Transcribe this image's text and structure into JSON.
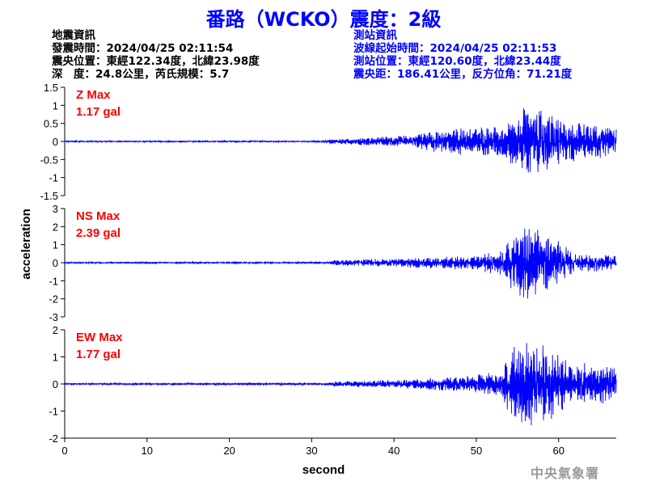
{
  "header": {
    "title": "番路（WCKO）震度：2級"
  },
  "quake_info": {
    "heading": "地震資訊",
    "time": "發震時間：2024/04/25 02:11:54",
    "location": "震央位置：東經122.34度，北緯23.98度",
    "depth_mag": "深　度：24.8公里，芮氏規模：5.7"
  },
  "station_info": {
    "heading": "測站資訊",
    "wave_start": "波線起始時間：2024/04/25 02:11:53",
    "location": "測站位置：東經120.60度，北緯23.44度",
    "distance": "震央距：186.41公里，反方位角：71.21度"
  },
  "watermark": "中央氣象署",
  "colors": {
    "title": "#0000ff",
    "station_text": "#0000ff",
    "trace": "#0000ff",
    "max_label": "#ff0000",
    "axis": "#000000"
  },
  "chart_data": {
    "type": "line",
    "xlabel": "second",
    "ylabel": "acceleration",
    "xlim": [
      0,
      67
    ],
    "x_ticks": [
      "0",
      "10",
      "20",
      "30",
      "40",
      "50",
      "60"
    ],
    "panels": [
      {
        "name": "Z",
        "max_label": "Z Max",
        "max_value": "1.17 gal",
        "ylim": [
          -1.5,
          1.5
        ],
        "y_ticks": [
          "1.5",
          "1",
          "0.5",
          "0",
          "-0.5",
          "-1",
          "-1.5"
        ],
        "envelope": [
          {
            "t": 0,
            "amp": 0.02
          },
          {
            "t": 31,
            "amp": 0.02
          },
          {
            "t": 32,
            "amp": 0.06
          },
          {
            "t": 38,
            "amp": 0.12
          },
          {
            "t": 42,
            "amp": 0.18
          },
          {
            "t": 46,
            "amp": 0.35
          },
          {
            "t": 50,
            "amp": 0.4
          },
          {
            "t": 53,
            "amp": 0.45
          },
          {
            "t": 55,
            "amp": 0.9
          },
          {
            "t": 56,
            "amp": 1.17
          },
          {
            "t": 58,
            "amp": 0.9
          },
          {
            "t": 61,
            "amp": 0.6
          },
          {
            "t": 67,
            "amp": 0.4
          }
        ]
      },
      {
        "name": "NS",
        "max_label": "NS Max",
        "max_value": "2.39 gal",
        "ylim": [
          -3,
          3
        ],
        "y_ticks": [
          "3",
          "2",
          "1",
          "0",
          "-1",
          "-2",
          "-3"
        ],
        "envelope": [
          {
            "t": 0,
            "amp": 0.04
          },
          {
            "t": 32,
            "amp": 0.05
          },
          {
            "t": 33,
            "amp": 0.15
          },
          {
            "t": 40,
            "amp": 0.25
          },
          {
            "t": 46,
            "amp": 0.35
          },
          {
            "t": 50,
            "amp": 0.45
          },
          {
            "t": 53,
            "amp": 0.7
          },
          {
            "t": 54.5,
            "amp": 1.7
          },
          {
            "t": 56,
            "amp": 2.39
          },
          {
            "t": 58,
            "amp": 2.0
          },
          {
            "t": 60,
            "amp": 1.2
          },
          {
            "t": 62,
            "amp": 0.6
          },
          {
            "t": 67,
            "amp": 0.4
          }
        ]
      },
      {
        "name": "EW",
        "max_label": "EW Max",
        "max_value": "1.77 gal",
        "ylim": [
          -2,
          2
        ],
        "y_ticks": [
          "2",
          "1",
          "0",
          "-1",
          "-2"
        ],
        "envelope": [
          {
            "t": 0,
            "amp": 0.03
          },
          {
            "t": 32,
            "amp": 0.04
          },
          {
            "t": 33,
            "amp": 0.1
          },
          {
            "t": 40,
            "amp": 0.15
          },
          {
            "t": 46,
            "amp": 0.25
          },
          {
            "t": 50,
            "amp": 0.35
          },
          {
            "t": 53,
            "amp": 0.5
          },
          {
            "t": 54.5,
            "amp": 1.4
          },
          {
            "t": 56,
            "amp": 1.77
          },
          {
            "t": 58,
            "amp": 1.5
          },
          {
            "t": 60,
            "amp": 1.2
          },
          {
            "t": 62,
            "amp": 0.8
          },
          {
            "t": 65,
            "amp": 0.8
          },
          {
            "t": 67,
            "amp": 0.6
          }
        ]
      }
    ]
  }
}
